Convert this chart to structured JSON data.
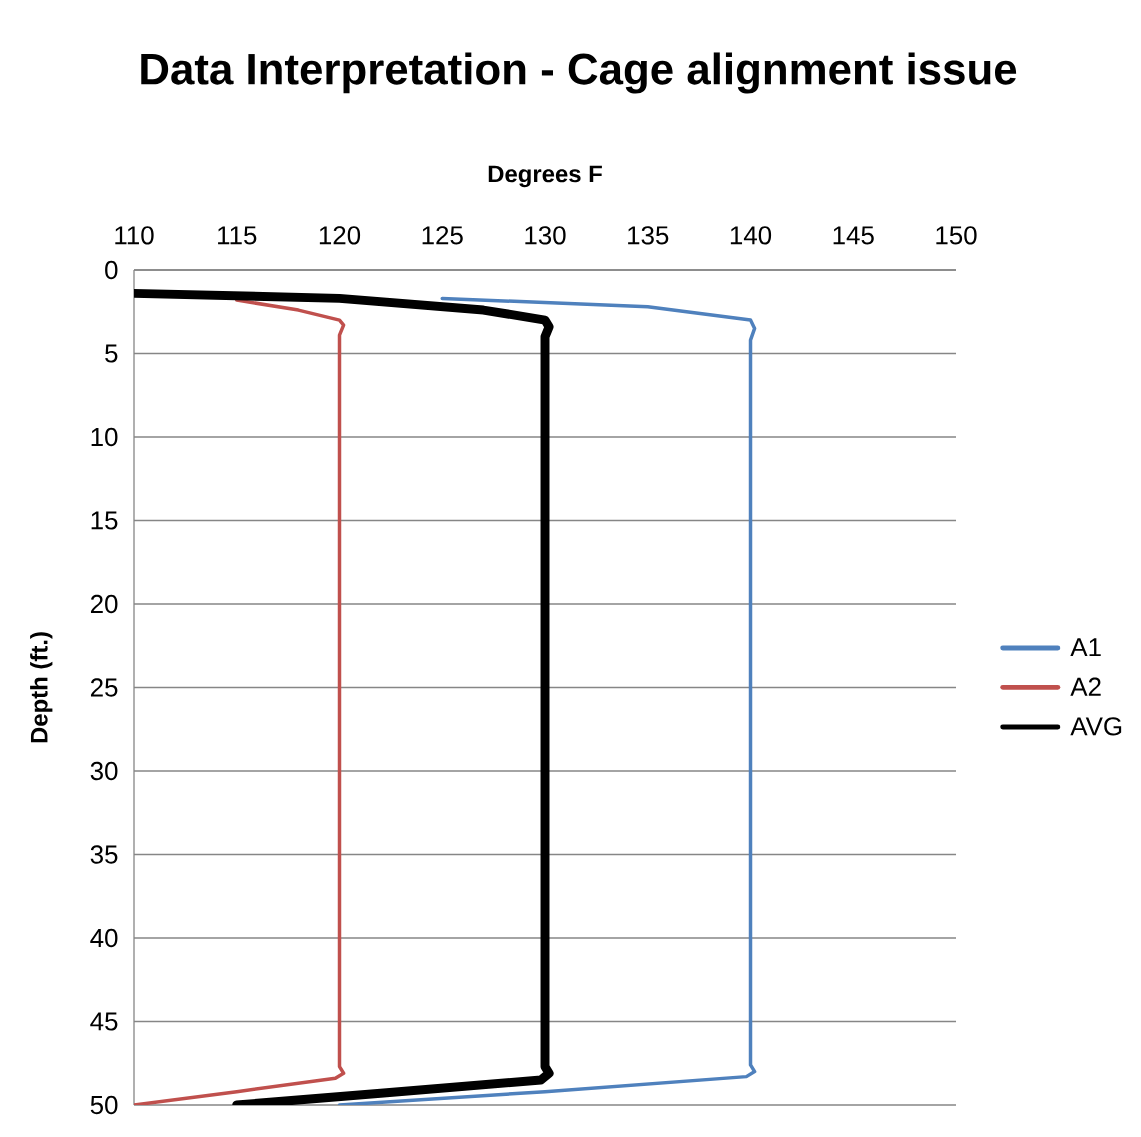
{
  "chart_data": {
    "type": "line",
    "title": "Data Interpretation - Cage alignment issue",
    "xlabel": "Degrees F",
    "ylabel": "Depth (ft.)",
    "xlim": [
      110,
      150
    ],
    "xticks": [
      110,
      115,
      120,
      125,
      130,
      135,
      140,
      145,
      150
    ],
    "ylim": [
      50,
      0
    ],
    "yticks": [
      0,
      5,
      10,
      15,
      20,
      25,
      30,
      35,
      40,
      45,
      50
    ],
    "grid": "y",
    "legend": "right",
    "marker": "none",
    "line_style": "solid",
    "series": [
      {
        "name": "A1",
        "color": "#4f81bd",
        "x": [
          125,
          135,
          140,
          140.2,
          140,
          140,
          140.2,
          139.8,
          130,
          120
        ],
        "values": [
          1.7,
          2.2,
          3.0,
          3.5,
          4.2,
          47.6,
          48.0,
          48.3,
          49.2,
          50
        ]
      },
      {
        "name": "A2",
        "color": "#c0504d",
        "x": [
          115,
          118,
          120,
          120.2,
          120,
          120,
          120.2,
          119.8,
          115,
          110
        ],
        "values": [
          1.8,
          2.4,
          3.0,
          3.3,
          3.9,
          47.7,
          48.1,
          48.4,
          49.2,
          50
        ]
      },
      {
        "name": "AVG",
        "color": "#000000",
        "x": [
          110,
          120,
          127,
          130,
          130.2,
          130,
          130,
          130.2,
          129.8,
          122,
          115
        ],
        "values": [
          1.4,
          1.7,
          2.4,
          3.0,
          3.4,
          4.0,
          47.7,
          48.1,
          48.5,
          49.3,
          50
        ]
      }
    ]
  }
}
